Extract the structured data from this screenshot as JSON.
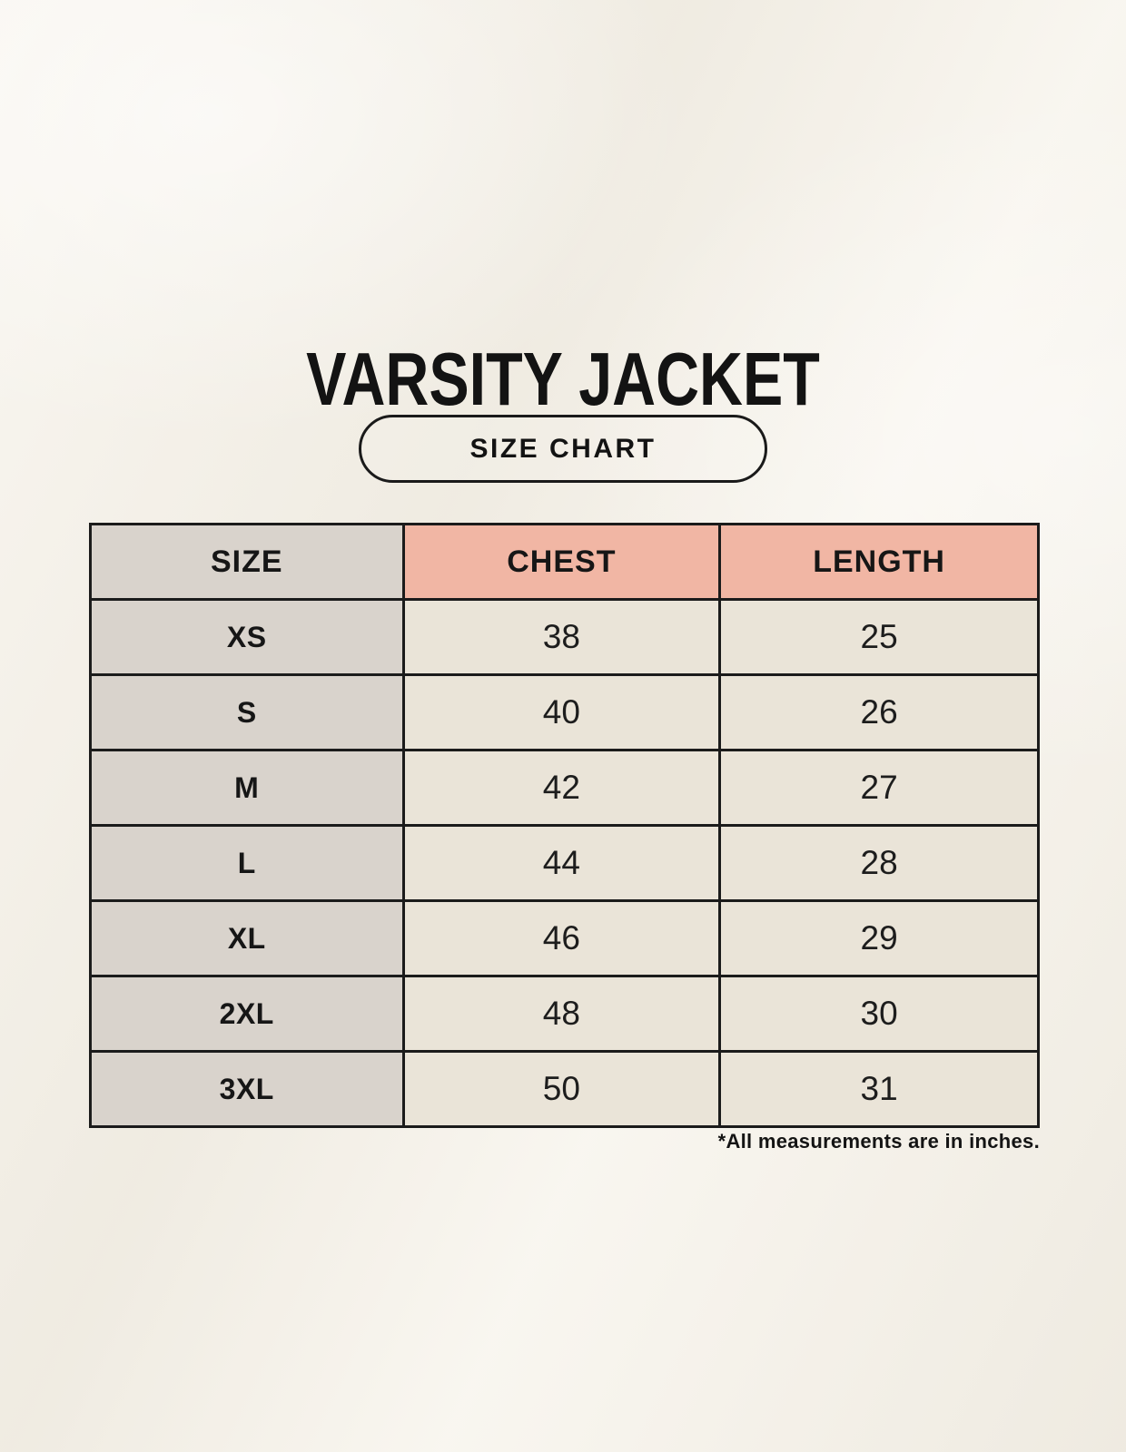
{
  "header": {
    "title": "VARSITY JACKET",
    "badge_label": "SIZE CHART"
  },
  "footnote": "*All measurements are in inches.",
  "chart_data": {
    "type": "table",
    "title": "VARSITY JACKET",
    "subtitle": "SIZE CHART",
    "columns": [
      "SIZE",
      "CHEST",
      "LENGTH"
    ],
    "rows": [
      {
        "size": "XS",
        "chest": "38",
        "length": "25"
      },
      {
        "size": "S",
        "chest": "40",
        "length": "26"
      },
      {
        "size": "M",
        "chest": "42",
        "length": "27"
      },
      {
        "size": "L",
        "chest": "44",
        "length": "28"
      },
      {
        "size": "XL",
        "chest": "46",
        "length": "29"
      },
      {
        "size": "2XL",
        "chest": "48",
        "length": "30"
      },
      {
        "size": "3XL",
        "chest": "50",
        "length": "31"
      }
    ],
    "units": "inches",
    "note": "*All measurements are in inches.",
    "layout": {
      "legend_position": "none",
      "grid": "full-borders",
      "header_row_fill_size_col": "#d9d3cc",
      "header_row_fill_measure_cols": "#f1b6a4",
      "body_size_col_fill": "#d9d3cc",
      "body_measure_col_fill": "#eae4d8"
    }
  },
  "colors": {
    "background_cream": "#f6f2e9",
    "size_column_gray": "#d9d3cc",
    "header_salmon": "#f1b6a4",
    "cell_beige": "#eae4d8",
    "border_black": "#1b1b1b",
    "text_black": "#131313"
  }
}
